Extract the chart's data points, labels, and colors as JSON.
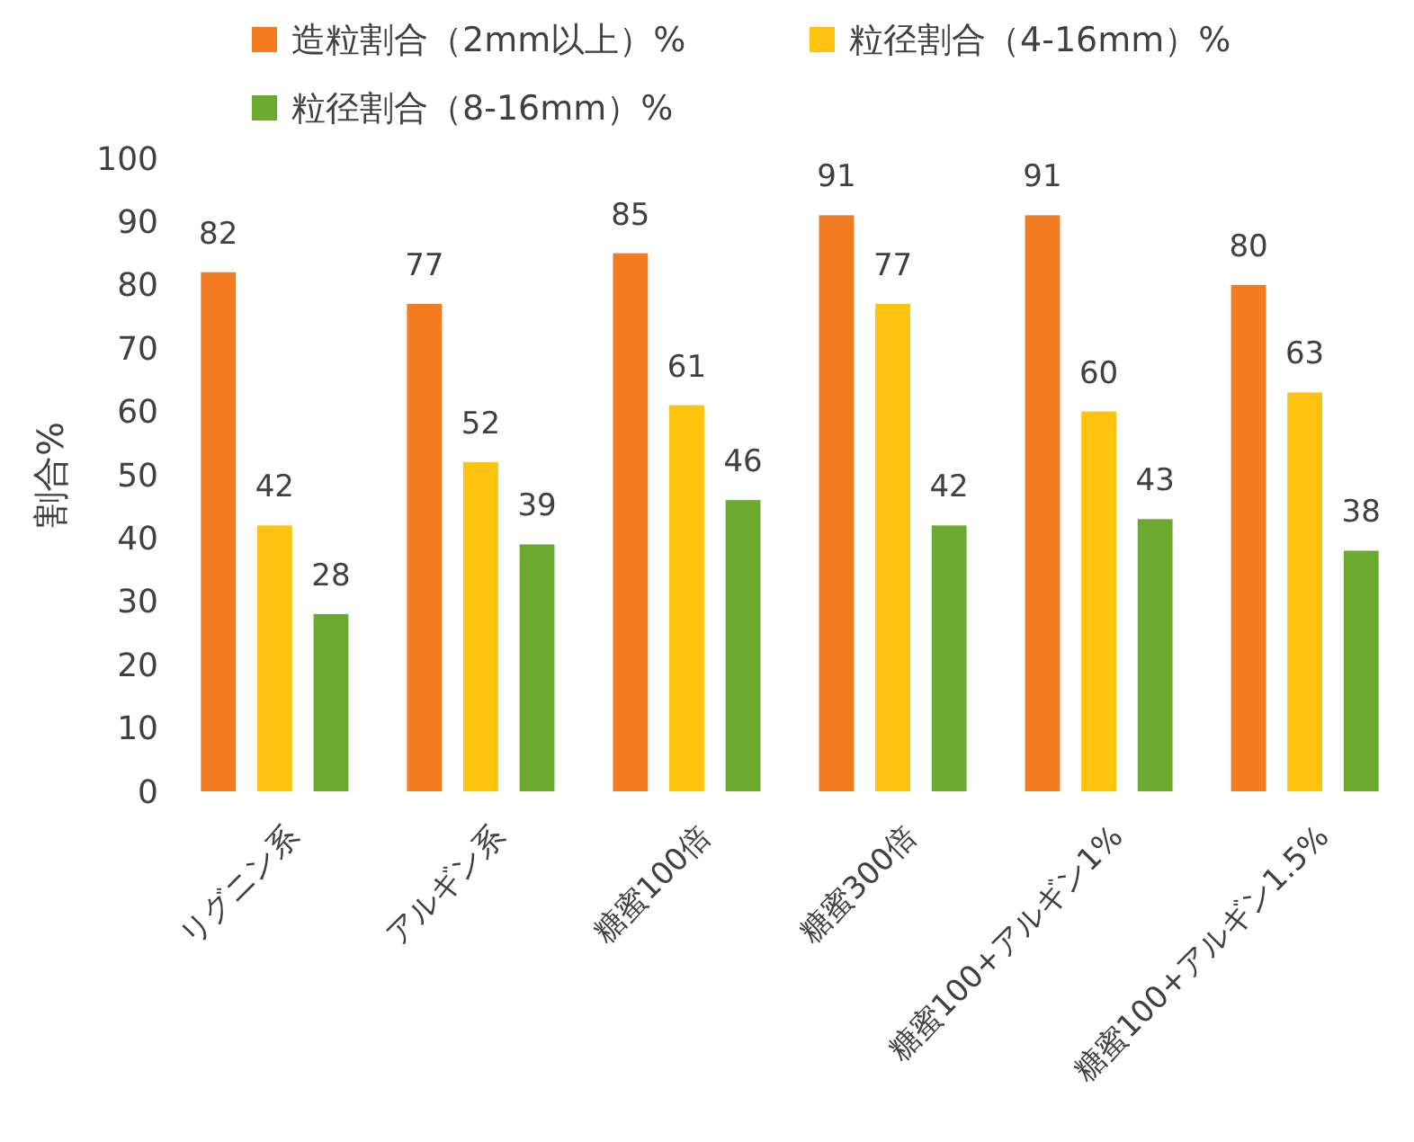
{
  "chart_data": {
    "type": "bar",
    "ylabel": "割合%",
    "categories": [
      "リグニン系",
      "アルギン系",
      "糖蜜100倍",
      "糖蜜300倍",
      "糖蜜100+アルギン1%",
      "糖蜜100+アルギン1.5%"
    ],
    "series": [
      {
        "name": "造粒割合（2mm以上）%",
        "color": "#f47b20",
        "values": [
          82,
          77,
          85,
          91,
          91,
          80
        ]
      },
      {
        "name": "粒径割合（4-16mm）%",
        "color": "#ffc20e",
        "values": [
          42,
          52,
          61,
          77,
          60,
          63
        ]
      },
      {
        "name": "粒径割合（8-16mm）%",
        "color": "#6aab2f",
        "values": [
          28,
          39,
          46,
          42,
          43,
          38
        ]
      }
    ],
    "ylim": [
      0,
      100
    ],
    "yticks": [
      0,
      10,
      20,
      30,
      40,
      50,
      60,
      70,
      80,
      90,
      100
    ],
    "data_labels": true,
    "legend": "top",
    "grid": false
  }
}
